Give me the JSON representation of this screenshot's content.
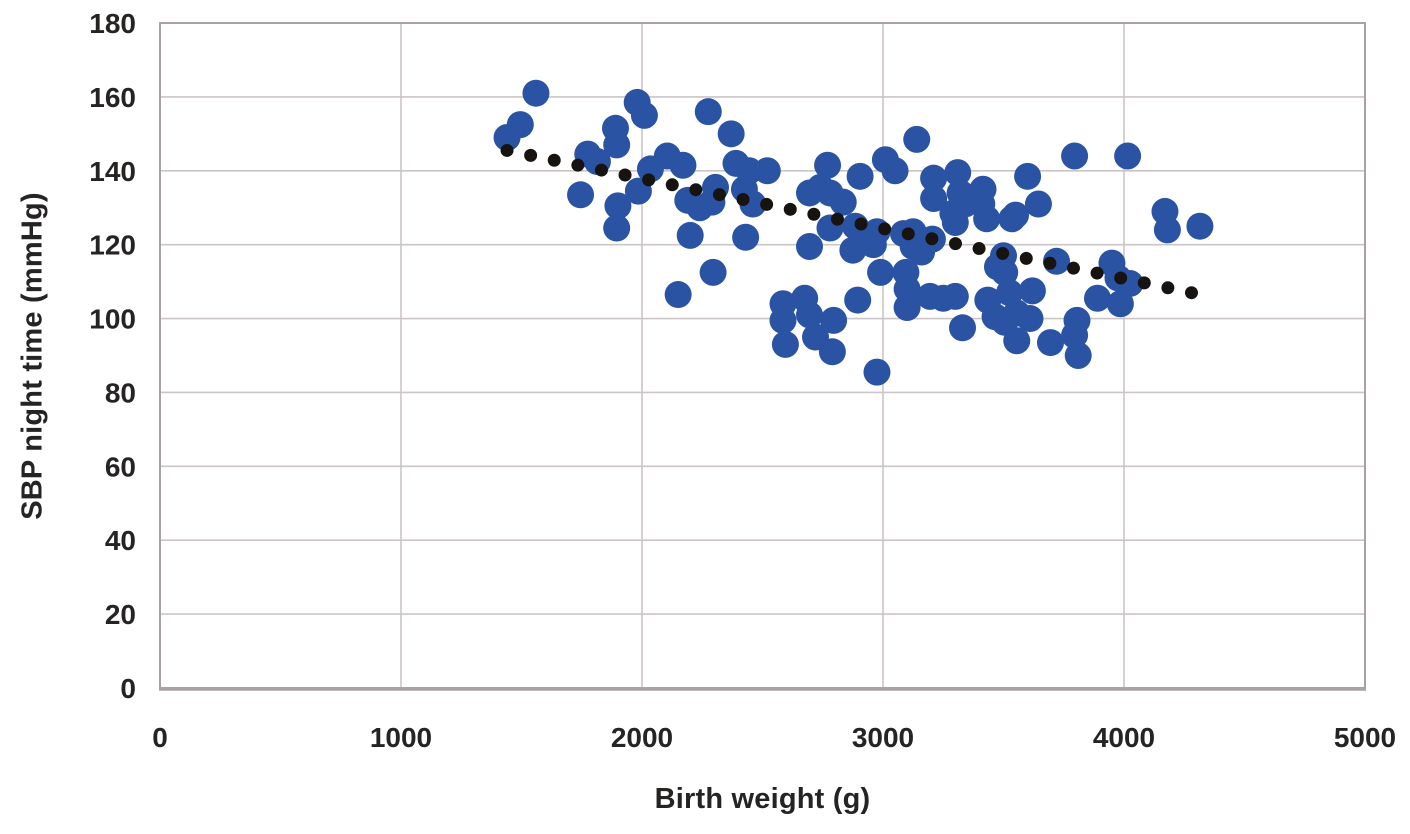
{
  "chart_data": {
    "type": "scatter",
    "title": "",
    "xlabel": "Birth weight (g)",
    "ylabel": "SBP night time (mmHg)",
    "xlim": [
      0,
      5000
    ],
    "ylim": [
      0,
      180
    ],
    "x_ticks": [
      0,
      1000,
      2000,
      3000,
      4000,
      5000
    ],
    "y_ticks": [
      0,
      20,
      40,
      60,
      80,
      100,
      120,
      140,
      160,
      180
    ],
    "grid": true,
    "legend": "none",
    "colors": {
      "point": "#2b53a4",
      "trend": "#171310",
      "grid": "#cbc5c5",
      "axis_border": "#a8a2a2",
      "text": "#262323",
      "background": "#ffffff"
    },
    "series": [
      {
        "name": "SBP night time vs birth weight",
        "type": "scatter",
        "color": "#2b53a4",
        "marker_radius": 13.5,
        "points": [
          [
            1560,
            161
          ],
          [
            1495,
            152.5
          ],
          [
            1440,
            149
          ],
          [
            1775,
            144.5
          ],
          [
            1815,
            142.5
          ],
          [
            1745,
            133.5
          ],
          [
            1890,
            151.5
          ],
          [
            1895,
            147
          ],
          [
            1900,
            130.5
          ],
          [
            1895,
            124.5
          ],
          [
            1985,
            134.5
          ],
          [
            1980,
            158.5
          ],
          [
            2010,
            155
          ],
          [
            2275,
            156
          ],
          [
            2035,
            140.5
          ],
          [
            2105,
            144
          ],
          [
            2170,
            141.5
          ],
          [
            2190,
            132
          ],
          [
            2240,
            130
          ],
          [
            2290,
            131.5
          ],
          [
            2305,
            135.5
          ],
          [
            2200,
            122.5
          ],
          [
            2295,
            112.5
          ],
          [
            2150,
            106.5
          ],
          [
            2370,
            150
          ],
          [
            2390,
            142
          ],
          [
            2445,
            140
          ],
          [
            2520,
            140
          ],
          [
            2425,
            135
          ],
          [
            2460,
            131
          ],
          [
            2430,
            122
          ],
          [
            2695,
            119.5
          ],
          [
            2770,
            141.5
          ],
          [
            2905,
            138.5
          ],
          [
            2695,
            134
          ],
          [
            2740,
            135.5
          ],
          [
            2780,
            134
          ],
          [
            2835,
            131.5
          ],
          [
            2780,
            124.5
          ],
          [
            2885,
            125
          ],
          [
            2915,
            122
          ],
          [
            2960,
            120
          ],
          [
            2875,
            118.5
          ],
          [
            2975,
            123.5
          ],
          [
            3085,
            123
          ],
          [
            3125,
            123.5
          ],
          [
            3125,
            119.5
          ],
          [
            3160,
            118
          ],
          [
            3205,
            121.5
          ],
          [
            3010,
            143
          ],
          [
            3050,
            140
          ],
          [
            3140,
            148.5
          ],
          [
            3210,
            138
          ],
          [
            3210,
            132.5
          ],
          [
            3300,
            126
          ],
          [
            3310,
            139.5
          ],
          [
            3320,
            134
          ],
          [
            3340,
            131
          ],
          [
            3290,
            128.5
          ],
          [
            3415,
            135
          ],
          [
            3410,
            131
          ],
          [
            3430,
            127
          ],
          [
            3535,
            127
          ],
          [
            2585,
            104
          ],
          [
            2675,
            105.5
          ],
          [
            2585,
            99.5
          ],
          [
            2695,
            101
          ],
          [
            2795,
            99.5
          ],
          [
            2595,
            93
          ],
          [
            2720,
            95
          ],
          [
            2790,
            91
          ],
          [
            2895,
            105
          ],
          [
            2975,
            85.5
          ],
          [
            2990,
            112.5
          ],
          [
            3095,
            112.5
          ],
          [
            3100,
            108
          ],
          [
            3100,
            103
          ],
          [
            3195,
            106
          ],
          [
            3250,
            105.5
          ],
          [
            3300,
            106
          ],
          [
            3330,
            97.5
          ],
          [
            3435,
            105
          ],
          [
            3525,
            107
          ],
          [
            3620,
            107.5
          ],
          [
            3465,
            100.5
          ],
          [
            3505,
            99
          ],
          [
            3555,
            101.5
          ],
          [
            3610,
            100
          ],
          [
            3555,
            94
          ],
          [
            3695,
            93.5
          ],
          [
            3805,
            99.5
          ],
          [
            3795,
            95.5
          ],
          [
            3810,
            90
          ],
          [
            3890,
            105.5
          ],
          [
            3500,
            117
          ],
          [
            3475,
            114
          ],
          [
            3505,
            112.5
          ],
          [
            3600,
            138.5
          ],
          [
            3645,
            131
          ],
          [
            3550,
            128
          ],
          [
            3720,
            115.5
          ],
          [
            3795,
            144
          ],
          [
            4015,
            144
          ],
          [
            3950,
            115
          ],
          [
            3975,
            111
          ],
          [
            4025,
            109.5
          ],
          [
            3985,
            104
          ],
          [
            4170,
            129
          ],
          [
            4180,
            124
          ],
          [
            4315,
            125
          ]
        ]
      },
      {
        "name": "trend line",
        "type": "dotted-line",
        "color": "#171310",
        "marker_radius": 6.5,
        "dot_count": 30,
        "start": [
          1440,
          145.5
        ],
        "end": [
          4280,
          107
        ]
      }
    ]
  }
}
